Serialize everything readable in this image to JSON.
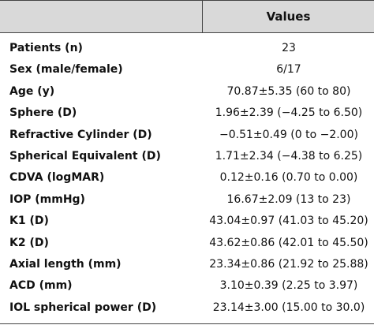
{
  "header": {
    "label_column": "",
    "values_column": "Values"
  },
  "rows": [
    {
      "label": "Patients (n)",
      "value": "23"
    },
    {
      "label": "Sex (male/female)",
      "value": "6/17"
    },
    {
      "label": "Age (y)",
      "value": "70.87±5.35 (60 to 80)"
    },
    {
      "label": "Sphere (D)",
      "value": "1.96±2.39 (−4.25 to 6.50)"
    },
    {
      "label": "Refractive Cylinder (D)",
      "value": "−0.51±0.49 (0 to −2.00)"
    },
    {
      "label": "Spherical Equivalent (D)",
      "value": "1.71±2.34 (−4.38 to 6.25)"
    },
    {
      "label": "CDVA (logMAR)",
      "value": "0.12±0.16 (0.70 to 0.00)"
    },
    {
      "label": "IOP (mmHg)",
      "value": "16.67±2.09 (13 to 23)"
    },
    {
      "label": "K1 (D)",
      "value": "43.04±0.97 (41.03 to 45.20)"
    },
    {
      "label": "K2 (D)",
      "value": "43.62±0.86 (42.01 to 45.50)"
    },
    {
      "label": "Axial length (mm)",
      "value": "23.34±0.86 (21.92 to 25.88)"
    },
    {
      "label": "ACD (mm)",
      "value": "3.10±0.39 (2.25 to 3.97)"
    },
    {
      "label": "IOL spherical power (D)",
      "value": "23.14±3.00 (15.00 to 30.0)"
    }
  ]
}
